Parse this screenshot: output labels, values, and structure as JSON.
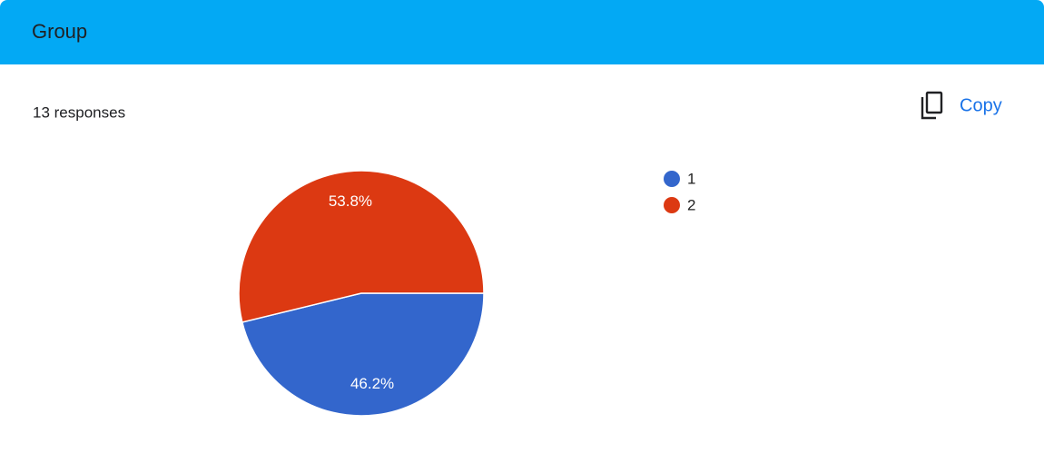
{
  "header": {
    "title": "Group"
  },
  "summary": "13 responses",
  "actions": {
    "copy": "Copy"
  },
  "chart_data": {
    "type": "pie",
    "categories": [
      "1",
      "2"
    ],
    "values": [
      46.2,
      53.8
    ],
    "value_labels": [
      "46.2%",
      "53.8%"
    ],
    "colors": [
      "#3366cc",
      "#dc3912"
    ],
    "legend": "right"
  }
}
